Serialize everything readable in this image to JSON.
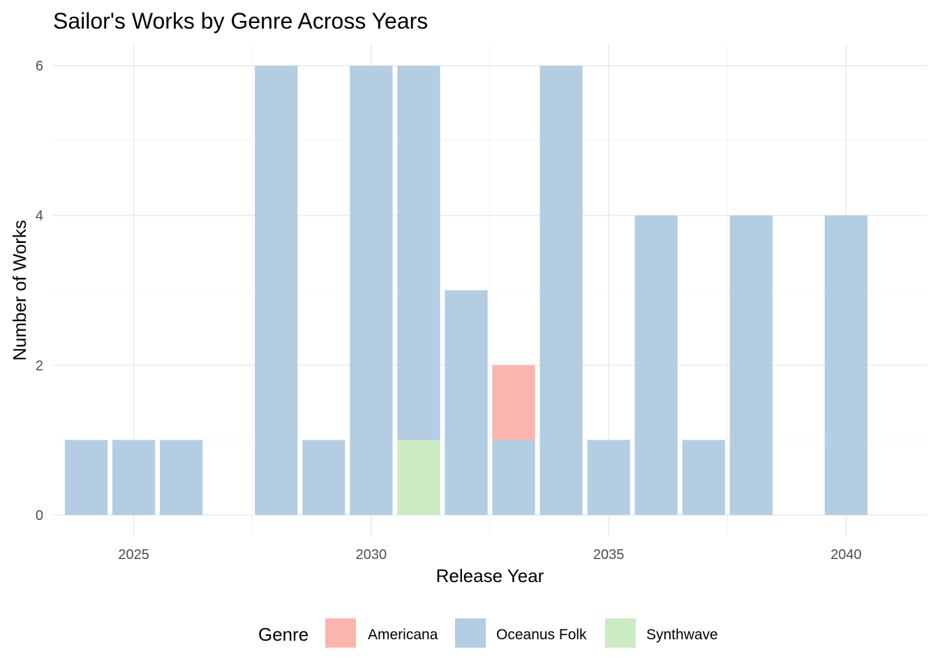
{
  "chart_data": {
    "type": "bar",
    "stacked": true,
    "title": "Sailor's Works by Genre Across Years",
    "xlabel": "Release Year",
    "ylabel": "Number of Works",
    "xlim": [
      2023.3,
      2041.7
    ],
    "ylim": [
      -0.3,
      6.3
    ],
    "x_ticks": [
      2025,
      2030,
      2035,
      2040
    ],
    "y_ticks": [
      0,
      2,
      4,
      6
    ],
    "grid": true,
    "legend": {
      "title": "Genre",
      "position": "bottom"
    },
    "x": [
      2024,
      2025,
      2026,
      2028,
      2029,
      2030,
      2031,
      2032,
      2033,
      2034,
      2035,
      2036,
      2037,
      2038,
      2040
    ],
    "series": [
      {
        "name": "Americana",
        "color": "#FBB4AE",
        "values": [
          0,
          0,
          0,
          0,
          0,
          0,
          0,
          0,
          1,
          0,
          0,
          0,
          0,
          0,
          0
        ]
      },
      {
        "name": "Oceanus Folk",
        "color": "#B3CDE3",
        "values": [
          1,
          1,
          1,
          6,
          1,
          6,
          5,
          3,
          1,
          6,
          1,
          4,
          1,
          4,
          4
        ]
      },
      {
        "name": "Synthwave",
        "color": "#CCEBC5",
        "values": [
          0,
          0,
          0,
          0,
          0,
          0,
          1,
          0,
          0,
          0,
          0,
          0,
          0,
          0,
          0
        ]
      }
    ],
    "stack_order_bottom_to_top": [
      "Synthwave",
      "Oceanus Folk",
      "Americana"
    ]
  }
}
